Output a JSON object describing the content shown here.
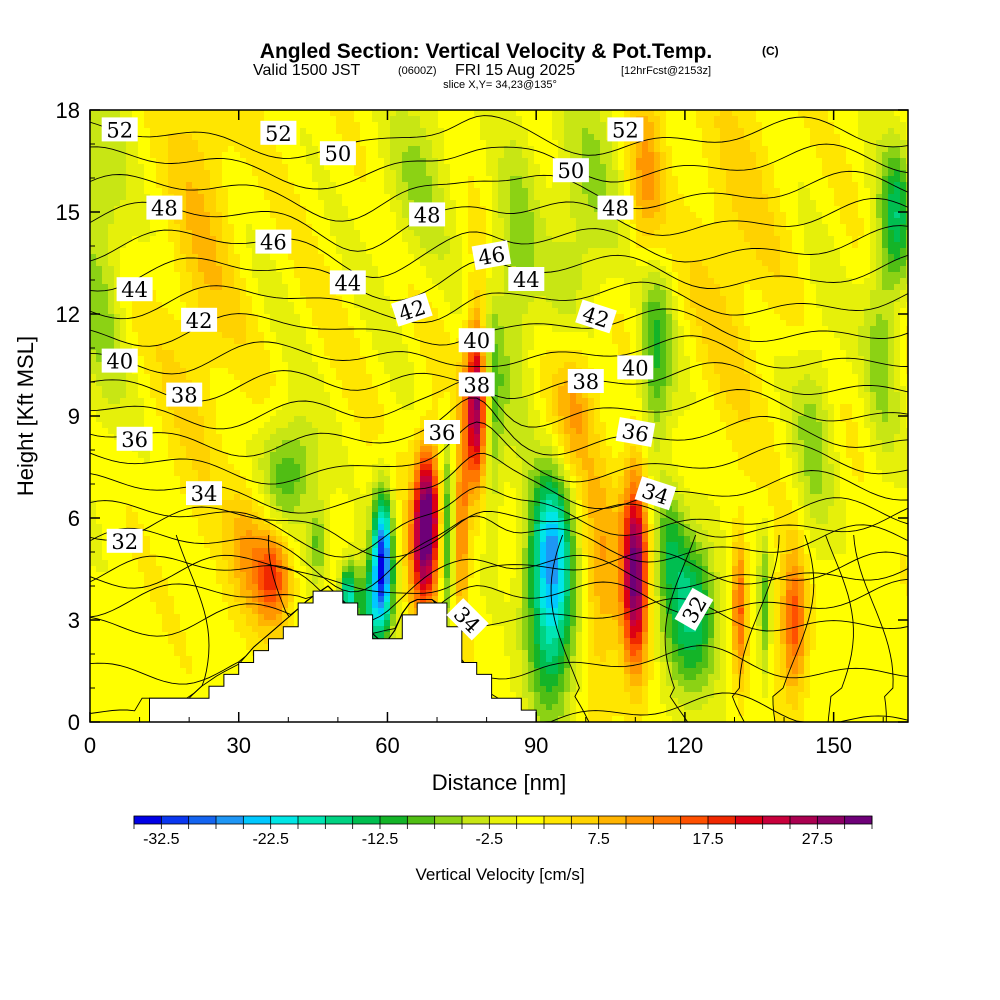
{
  "chart_data": {
    "type": "heatmap",
    "title": {
      "main": "Angled Section: Vertical Velocity & Pot.Temp.",
      "main_suffix": "(C)",
      "valid_prefix": "Valid 1500 JST",
      "valid_utc": "(0600Z)",
      "valid_date": "FRI 15 Aug 2025",
      "forecast": "[12hrFcst@2153z]",
      "slice": "slice X,Y= 34,23@135°"
    },
    "xlabel": "Distance [nm]",
    "ylabel": "Height [Kft MSL]",
    "xlim": [
      0,
      165
    ],
    "ylim": [
      0,
      18
    ],
    "xticks": [
      0,
      30,
      60,
      90,
      120,
      150
    ],
    "yticks": [
      0,
      3,
      6,
      9,
      12,
      15,
      18
    ],
    "colorbar": {
      "label": "Vertical Velocity [cm/s]",
      "min": -35,
      "max": 32.5,
      "step": 2.5,
      "tick_labels": [
        "-32.5",
        "-22.5",
        "-12.5",
        "-2.5",
        "7.5",
        "17.5",
        "27.5"
      ],
      "tick_values": [
        -32.5,
        -22.5,
        -12.5,
        -2.5,
        7.5,
        17.5,
        27.5
      ],
      "colors": [
        "#0000e6",
        "#0a37f0",
        "#1464f0",
        "#1e96f5",
        "#00c8ff",
        "#00e6e6",
        "#00e6b4",
        "#00d282",
        "#00be50",
        "#14b428",
        "#50be14",
        "#8cd214",
        "#c8e614",
        "#e6f00a",
        "#ffff00",
        "#ffe600",
        "#ffd200",
        "#ffb400",
        "#ff9600",
        "#ff7800",
        "#ff5000",
        "#f02800",
        "#dc0014",
        "#c8003c",
        "#aa0050",
        "#8c0064",
        "#6e0078"
      ]
    },
    "vertical_velocity_field": {
      "background": 1.5,
      "features": [
        {
          "x": 2,
          "z": 14,
          "sx": 4,
          "sz": 4,
          "w": -7
        },
        {
          "x": 22,
          "z": 14,
          "sx": 5,
          "sz": 5,
          "w": 5
        },
        {
          "x": 40,
          "z": 7.3,
          "sx": 4,
          "sz": 1.2,
          "w": -12
        },
        {
          "x": 46,
          "z": 5.2,
          "sx": 1.5,
          "sz": 0.8,
          "w": -10
        },
        {
          "x": 52,
          "z": 3.8,
          "sx": 1.2,
          "sz": 0.6,
          "w": -20
        },
        {
          "x": 59,
          "z": 5.0,
          "sx": 1.4,
          "sz": 1.3,
          "w": -30
        },
        {
          "x": 57,
          "z": 3.3,
          "sx": 2.5,
          "sz": 1.0,
          "w": -17
        },
        {
          "x": 37,
          "z": 4.3,
          "sx": 2.5,
          "sz": 1.0,
          "w": 16
        },
        {
          "x": 32,
          "z": 5.2,
          "sx": 3,
          "sz": 1.4,
          "w": 8
        },
        {
          "x": 68,
          "z": 6.3,
          "sx": 1.8,
          "sz": 1.3,
          "w": 28
        },
        {
          "x": 67,
          "z": 4.5,
          "sx": 2,
          "sz": 1.2,
          "w": 15
        },
        {
          "x": 72,
          "z": 5.3,
          "sx": 0.9,
          "sz": 2.0,
          "w": -13
        },
        {
          "x": 75,
          "z": 5.8,
          "sx": 1.0,
          "sz": 1.8,
          "w": 13
        },
        {
          "x": 78,
          "z": 9.5,
          "sx": 1.6,
          "sz": 1.8,
          "w": 27
        },
        {
          "x": 81,
          "z": 9.0,
          "sx": 1.5,
          "sz": 2.5,
          "w": -10
        },
        {
          "x": 93,
          "z": 3.2,
          "sx": 3.5,
          "sz": 2.2,
          "w": -20
        },
        {
          "x": 93,
          "z": 5.5,
          "sx": 3,
          "sz": 1.5,
          "w": -14
        },
        {
          "x": 103,
          "z": 4.5,
          "sx": 3,
          "sz": 2.5,
          "w": 8
        },
        {
          "x": 110,
          "z": 4.5,
          "sx": 1.8,
          "sz": 2.0,
          "w": 30
        },
        {
          "x": 114,
          "z": 10.5,
          "sx": 2.5,
          "sz": 2.0,
          "w": -12
        },
        {
          "x": 121,
          "z": 3.3,
          "sx": 4,
          "sz": 1.8,
          "w": -17
        },
        {
          "x": 117,
          "z": 5.5,
          "sx": 2,
          "sz": 1.2,
          "w": -8
        },
        {
          "x": 131,
          "z": 3.4,
          "sx": 1.0,
          "sz": 1.5,
          "w": 14
        },
        {
          "x": 136,
          "z": 3.3,
          "sx": 0.8,
          "sz": 1.5,
          "w": -10
        },
        {
          "x": 142,
          "z": 3.0,
          "sx": 1.8,
          "sz": 1.5,
          "w": 16
        },
        {
          "x": 146,
          "z": 8.5,
          "sx": 3,
          "sz": 2.5,
          "w": -7
        },
        {
          "x": 160,
          "z": 12,
          "sx": 2.5,
          "sz": 3,
          "w": -8
        },
        {
          "x": 163,
          "z": 15,
          "sx": 2,
          "sz": 1.5,
          "w": -12
        },
        {
          "x": 100,
          "z": 15,
          "sx": 5,
          "sz": 3,
          "w": -7
        },
        {
          "x": 112,
          "z": 16,
          "sx": 2.5,
          "sz": 2,
          "w": 9
        },
        {
          "x": 86,
          "z": 13,
          "sx": 3,
          "sz": 3,
          "w": -8
        },
        {
          "x": 130,
          "z": 14,
          "sx": 6,
          "sz": 4,
          "w": 4
        },
        {
          "x": 66,
          "z": 16,
          "sx": 5,
          "sz": 2,
          "w": -6
        },
        {
          "x": 98,
          "z": 9.5,
          "sx": 3,
          "sz": 1.5,
          "w": 10
        }
      ]
    },
    "terrain": {
      "x": [
        0,
        10,
        10,
        20,
        22,
        26,
        30,
        33,
        37,
        41,
        44,
        48,
        55,
        58,
        61,
        62,
        65,
        70,
        73,
        80,
        87,
        90
      ],
      "z": [
        0,
        0,
        0.7,
        0.7,
        1.0,
        1.4,
        1.7,
        2.2,
        2.7,
        3.2,
        3.6,
        4.0,
        3.0,
        2.4,
        2.4,
        3.0,
        3.6,
        3.6,
        2.2,
        0.9,
        0.3,
        0.0
      ]
    },
    "pot_temp_contours": {
      "levels": [
        31,
        32,
        33,
        34,
        35,
        36,
        37,
        38,
        39,
        40,
        41,
        42,
        43,
        44,
        45,
        46,
        47,
        48,
        49,
        50,
        51,
        52,
        53
      ]
    },
    "contour_labels": [
      {
        "text": "52",
        "x": 6,
        "z": 17.4,
        "angle": 0
      },
      {
        "text": "52",
        "x": 38,
        "z": 17.3,
        "angle": 0
      },
      {
        "text": "52",
        "x": 108,
        "z": 17.4,
        "angle": 0
      },
      {
        "text": "50",
        "x": 50,
        "z": 16.7,
        "angle": 0
      },
      {
        "text": "50",
        "x": 97,
        "z": 16.2,
        "angle": 0
      },
      {
        "text": "48",
        "x": 15,
        "z": 15.1,
        "angle": 0
      },
      {
        "text": "48",
        "x": 68,
        "z": 14.9,
        "angle": 0
      },
      {
        "text": "48",
        "x": 106,
        "z": 15.1,
        "angle": 0
      },
      {
        "text": "46",
        "x": 37,
        "z": 14.1,
        "angle": 0
      },
      {
        "text": "46",
        "x": 81,
        "z": 13.7,
        "angle": -10
      },
      {
        "text": "44",
        "x": 9,
        "z": 12.7,
        "angle": 0
      },
      {
        "text": "44",
        "x": 52,
        "z": 12.9,
        "angle": 0
      },
      {
        "text": "44",
        "x": 88,
        "z": 13.0,
        "angle": 0
      },
      {
        "text": "42",
        "x": 22,
        "z": 11.8,
        "angle": 0
      },
      {
        "text": "42",
        "x": 65,
        "z": 12.1,
        "angle": -18
      },
      {
        "text": "42",
        "x": 102,
        "z": 11.9,
        "angle": 18
      },
      {
        "text": "40",
        "x": 6,
        "z": 10.6,
        "angle": 0
      },
      {
        "text": "40",
        "x": 78,
        "z": 11.2,
        "angle": 0
      },
      {
        "text": "40",
        "x": 110,
        "z": 10.4,
        "angle": 0
      },
      {
        "text": "38",
        "x": 19,
        "z": 9.6,
        "angle": 0
      },
      {
        "text": "38",
        "x": 78,
        "z": 9.9,
        "angle": 0
      },
      {
        "text": "38",
        "x": 100,
        "z": 10.0,
        "angle": 0
      },
      {
        "text": "36",
        "x": 9,
        "z": 8.3,
        "angle": 0
      },
      {
        "text": "36",
        "x": 71,
        "z": 8.5,
        "angle": 0
      },
      {
        "text": "36",
        "x": 110,
        "z": 8.5,
        "angle": 10
      },
      {
        "text": "34",
        "x": 23,
        "z": 6.7,
        "angle": 0
      },
      {
        "text": "34",
        "x": 76,
        "z": 3.0,
        "angle": 45
      },
      {
        "text": "34",
        "x": 114,
        "z": 6.7,
        "angle": 18
      },
      {
        "text": "32",
        "x": 7,
        "z": 5.3,
        "angle": 0
      },
      {
        "text": "32",
        "x": 122,
        "z": 3.3,
        "angle": -60
      }
    ]
  }
}
